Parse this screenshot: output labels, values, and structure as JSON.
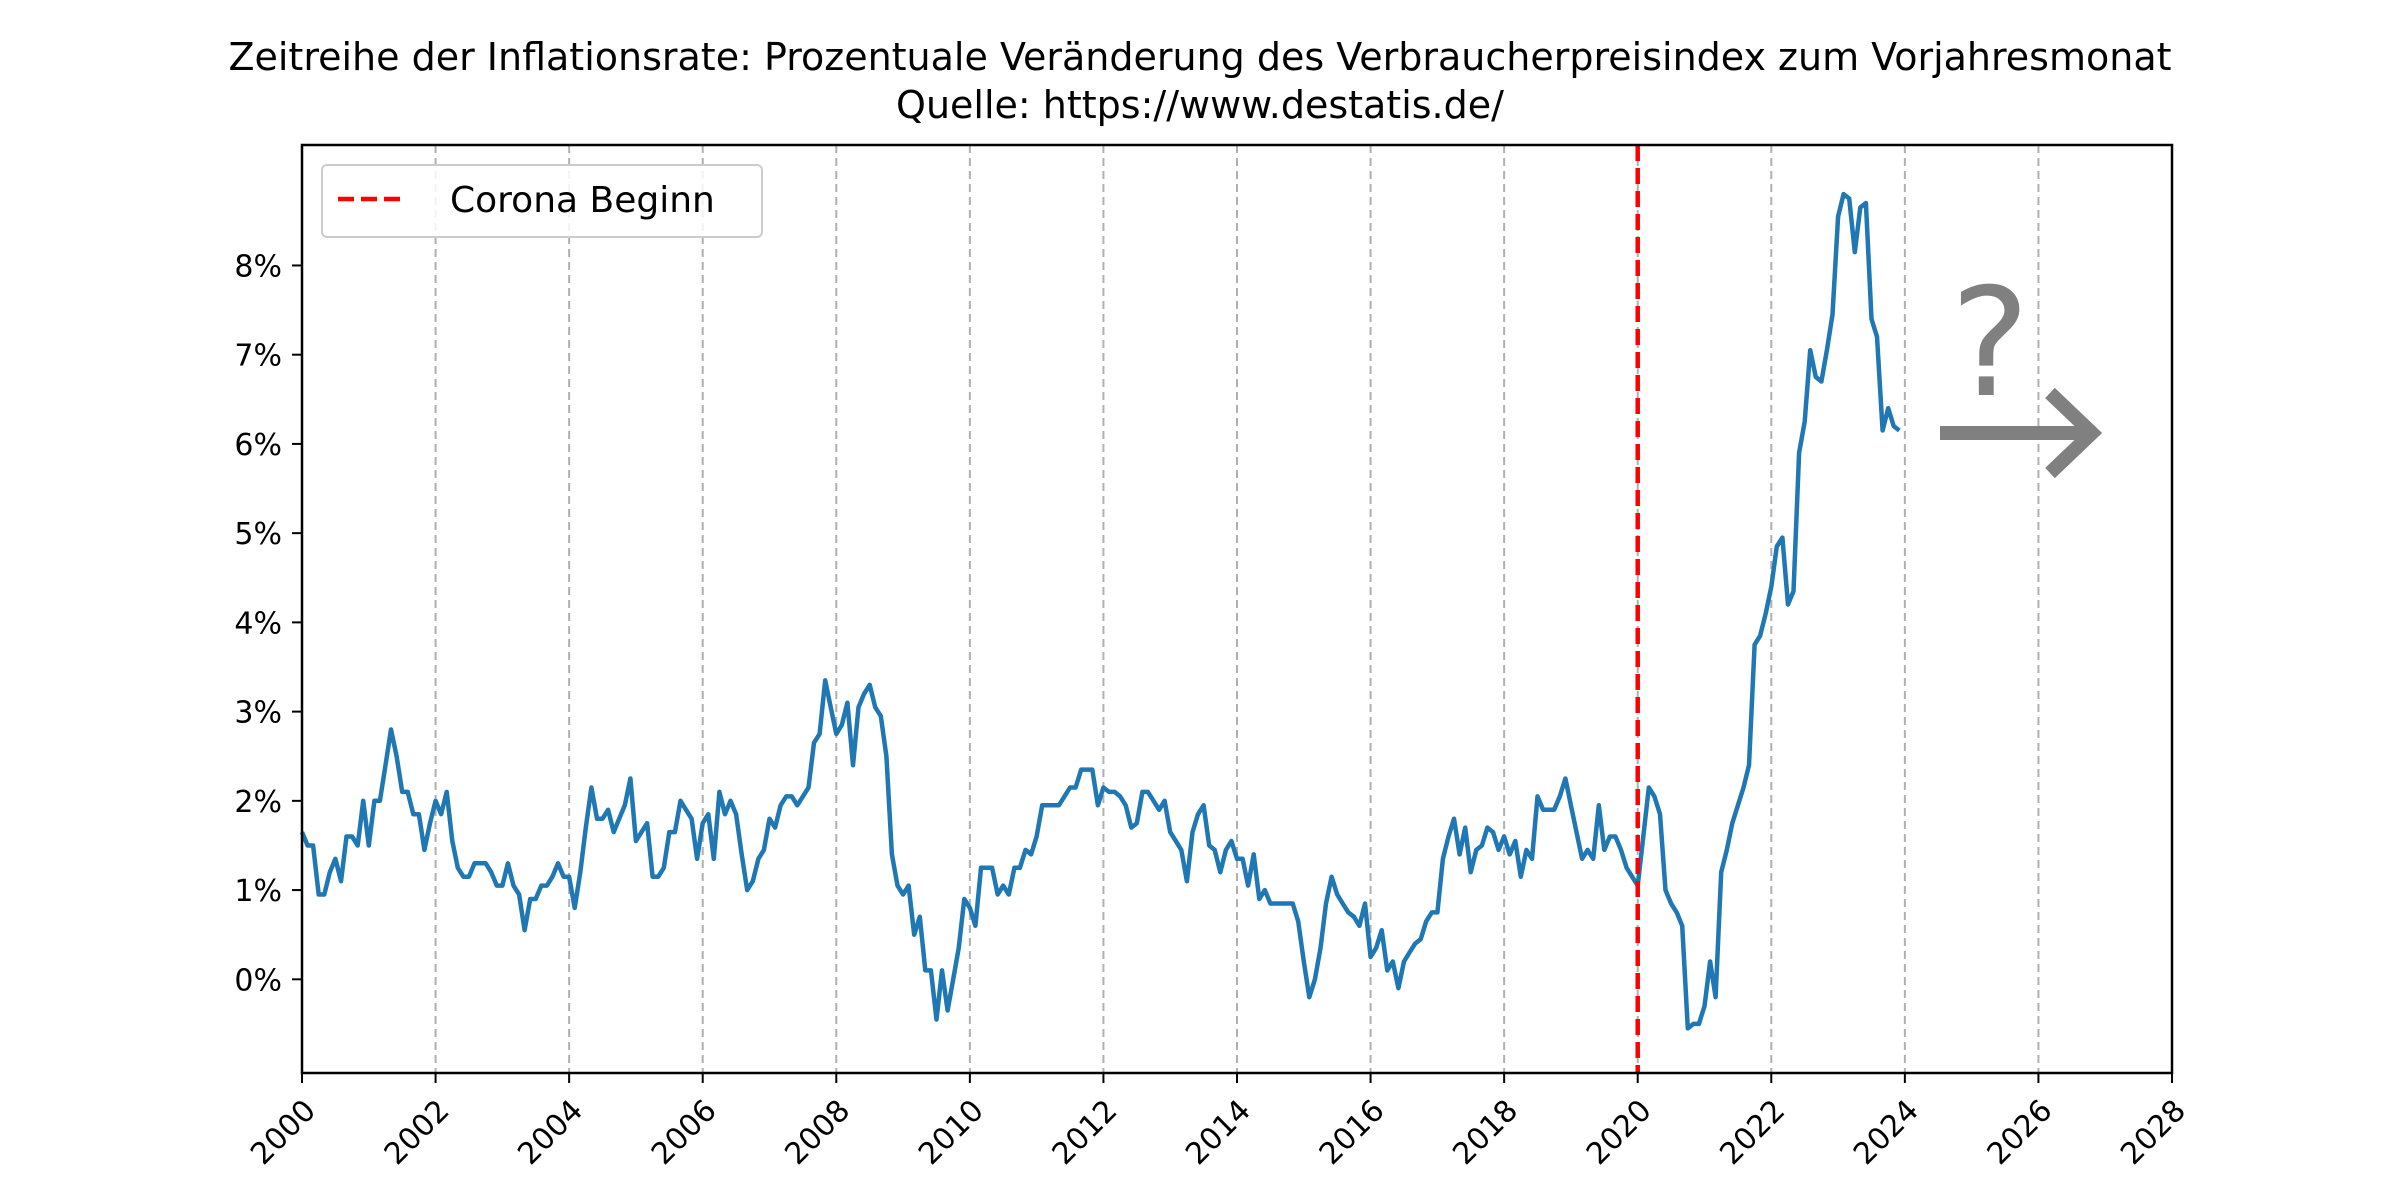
{
  "chart_data": {
    "type": "line",
    "title": "Zeitreihe der Inflationsrate: Prozentuale Veränderung des Verbraucherpreisindex zum Vorjahresmonat",
    "subtitle": "Quelle: https://www.destatis.de/",
    "xlabel": "",
    "ylabel": "",
    "xlim": [
      2000,
      2028
    ],
    "ylim": [
      -1.05,
      9.35
    ],
    "x_ticks": [
      2000,
      2002,
      2004,
      2006,
      2008,
      2010,
      2012,
      2014,
      2016,
      2018,
      2020,
      2022,
      2024,
      2026,
      2028
    ],
    "y_ticks": [
      0,
      1,
      2,
      3,
      4,
      5,
      6,
      7,
      8
    ],
    "y_tick_labels": [
      "0%",
      "1%",
      "2%",
      "3%",
      "4%",
      "5%",
      "6%",
      "7%",
      "8%"
    ],
    "grid": "vertical dashed at x ticks",
    "legend": {
      "placement": "top-left",
      "entries": [
        "Corona Beginn"
      ]
    },
    "vertical_line": {
      "x": 2020.0,
      "name": "Corona Beginn",
      "color": "#ff0000",
      "style": "dashed"
    },
    "annotations": {
      "question_mark": "?",
      "arrow": "→"
    },
    "series": [
      {
        "color": "#1f77b4",
        "x_start": 2000.0,
        "x_step": 0.083333,
        "values": [
          1.65,
          1.5,
          1.5,
          0.95,
          0.95,
          1.2,
          1.35,
          1.1,
          1.6,
          1.6,
          1.5,
          2.0,
          1.5,
          2.0,
          2.0,
          2.4,
          2.8,
          2.5,
          2.1,
          2.1,
          1.85,
          1.85,
          1.45,
          1.75,
          2.0,
          1.85,
          2.1,
          1.55,
          1.25,
          1.15,
          1.15,
          1.3,
          1.3,
          1.3,
          1.2,
          1.05,
          1.05,
          1.3,
          1.05,
          0.95,
          0.55,
          0.9,
          0.9,
          1.05,
          1.05,
          1.15,
          1.3,
          1.15,
          1.15,
          0.8,
          1.2,
          1.7,
          2.15,
          1.8,
          1.8,
          1.9,
          1.65,
          1.8,
          1.95,
          2.25,
          1.55,
          1.65,
          1.75,
          1.15,
          1.15,
          1.25,
          1.65,
          1.65,
          2.0,
          1.9,
          1.8,
          1.35,
          1.75,
          1.85,
          1.35,
          2.1,
          1.85,
          2.0,
          1.85,
          1.4,
          1.0,
          1.1,
          1.35,
          1.45,
          1.8,
          1.7,
          1.95,
          2.05,
          2.05,
          1.95,
          2.05,
          2.15,
          2.65,
          2.75,
          3.35,
          3.05,
          2.75,
          2.85,
          3.1,
          2.4,
          3.05,
          3.2,
          3.3,
          3.05,
          2.95,
          2.5,
          1.4,
          1.05,
          0.95,
          1.05,
          0.5,
          0.7,
          0.1,
          0.1,
          -0.45,
          0.1,
          -0.35,
          0.0,
          0.35,
          0.9,
          0.8,
          0.6,
          1.25,
          1.25,
          1.25,
          0.95,
          1.05,
          0.95,
          1.25,
          1.25,
          1.45,
          1.4,
          1.6,
          1.95,
          1.95,
          1.95,
          1.95,
          2.05,
          2.15,
          2.15,
          2.35,
          2.35,
          2.35,
          1.95,
          2.15,
          2.1,
          2.1,
          2.05,
          1.95,
          1.7,
          1.75,
          2.1,
          2.1,
          2.0,
          1.9,
          2.0,
          1.65,
          1.55,
          1.45,
          1.1,
          1.65,
          1.85,
          1.95,
          1.5,
          1.45,
          1.2,
          1.45,
          1.55,
          1.35,
          1.35,
          1.05,
          1.4,
          0.9,
          1.0,
          0.85,
          0.85,
          0.85,
          0.85,
          0.85,
          0.65,
          0.2,
          -0.2,
          0.0,
          0.35,
          0.85,
          1.15,
          0.95,
          0.85,
          0.75,
          0.7,
          0.6,
          0.85,
          0.25,
          0.35,
          0.55,
          0.1,
          0.2,
          -0.1,
          0.2,
          0.3,
          0.4,
          0.45,
          0.65,
          0.75,
          0.75,
          1.35,
          1.6,
          1.8,
          1.4,
          1.7,
          1.2,
          1.45,
          1.5,
          1.7,
          1.65,
          1.45,
          1.6,
          1.4,
          1.55,
          1.15,
          1.45,
          1.35,
          2.05,
          1.9,
          1.9,
          1.9,
          2.05,
          2.25,
          1.95,
          1.65,
          1.35,
          1.45,
          1.35,
          1.95,
          1.45,
          1.6,
          1.6,
          1.45,
          1.25,
          1.15,
          1.05,
          1.6,
          2.15,
          2.05,
          1.85,
          1.0,
          0.85,
          0.75,
          0.6,
          -0.55,
          -0.5,
          -0.5,
          -0.3,
          0.2,
          -0.2,
          1.2,
          1.45,
          1.75,
          1.95,
          2.15,
          2.4,
          3.75,
          3.85,
          4.1,
          4.4,
          4.85,
          4.95,
          4.2,
          4.35,
          5.9,
          6.25,
          7.05,
          6.75,
          6.7,
          7.05,
          7.45,
          8.55,
          8.8,
          8.75,
          8.15,
          8.65,
          8.7,
          7.4,
          7.2,
          6.15,
          6.4,
          6.2,
          6.15
        ]
      }
    ]
  }
}
